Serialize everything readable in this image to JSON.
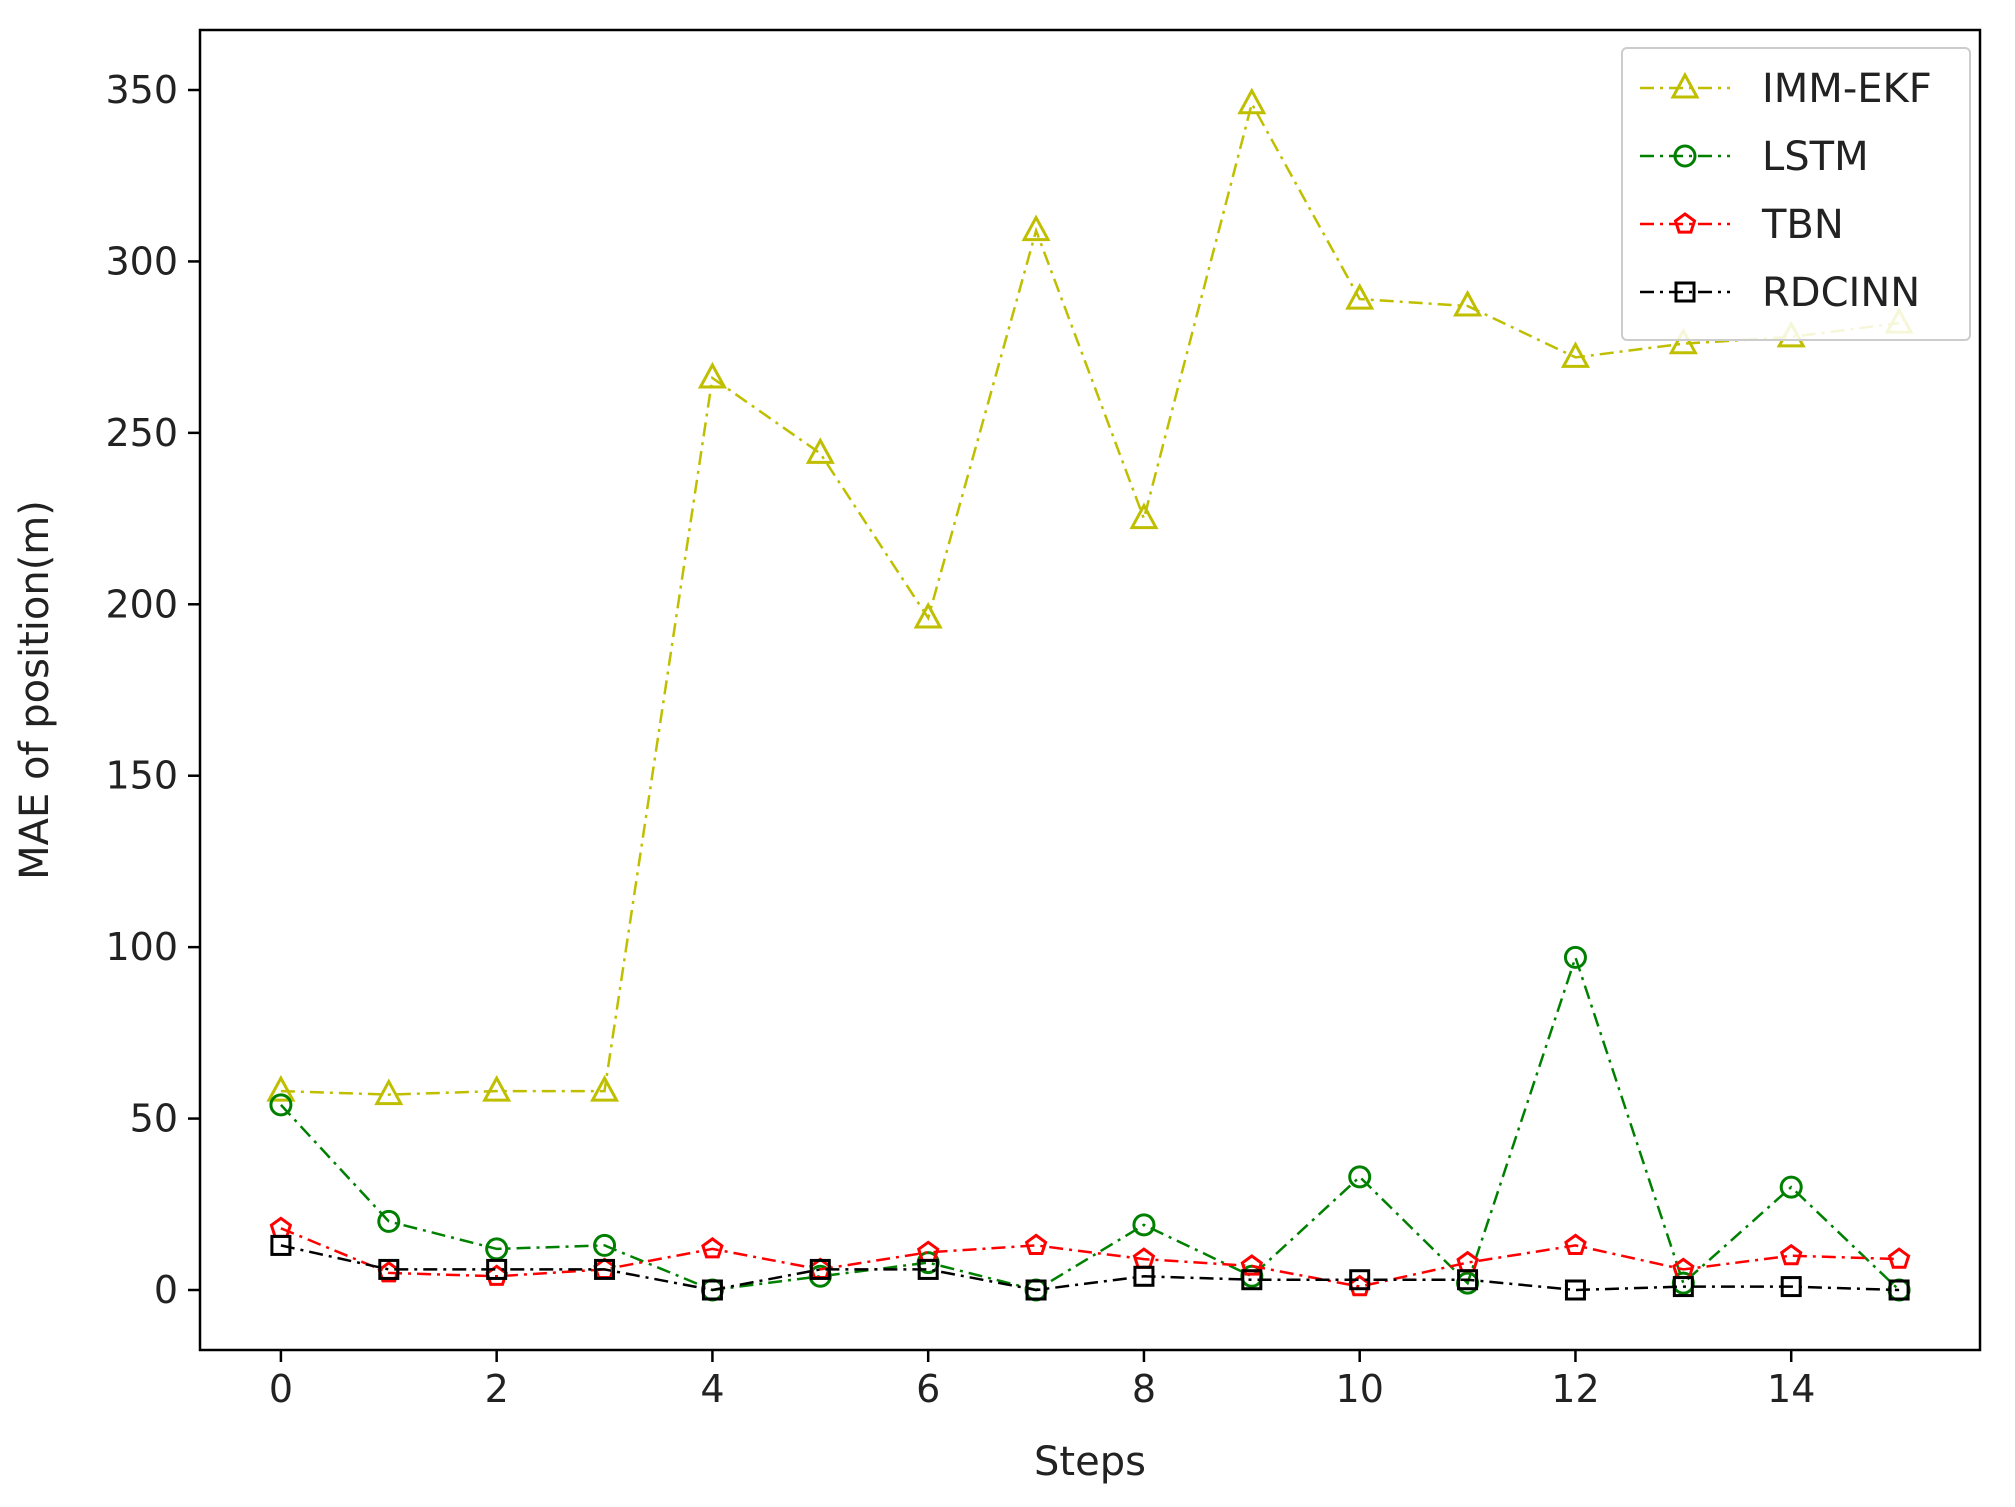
{
  "chart_data": {
    "type": "line",
    "title": "",
    "xlabel": "Steps",
    "ylabel": "MAE of position(m)",
    "xlim": [
      -0.75,
      15.75
    ],
    "ylim": [
      -17.5,
      367.5
    ],
    "xticks": [
      0,
      2,
      4,
      6,
      8,
      10,
      12,
      14
    ],
    "yticks": [
      0,
      50,
      100,
      150,
      200,
      250,
      300,
      350
    ],
    "grid": false,
    "legend_position": "top-right",
    "x": [
      0,
      1,
      2,
      3,
      4,
      5,
      6,
      7,
      8,
      9,
      10,
      11,
      12,
      13,
      14,
      15
    ],
    "series": [
      {
        "name": "IMM-EKF",
        "color": "#bfbf00",
        "marker": "triangle",
        "values": [
          58,
          57,
          58,
          58,
          266,
          244,
          196,
          309,
          225,
          346,
          289,
          287,
          272,
          276,
          278,
          282
        ]
      },
      {
        "name": "LSTM",
        "color": "#008000",
        "marker": "circle",
        "values": [
          54,
          20,
          12,
          13,
          0,
          4,
          8,
          0,
          19,
          4,
          33,
          2,
          97,
          2,
          30,
          0
        ]
      },
      {
        "name": "TBN",
        "color": "#ff0000",
        "marker": "pentagon",
        "values": [
          18,
          5,
          4,
          6,
          12,
          6,
          11,
          13,
          9,
          7,
          1,
          8,
          13,
          6,
          10,
          9
        ]
      },
      {
        "name": "RDCINN",
        "color": "#000000",
        "marker": "square",
        "values": [
          13,
          6,
          6,
          6,
          0,
          6,
          6,
          0,
          4,
          3,
          3,
          3,
          0,
          1,
          1,
          0
        ]
      }
    ]
  }
}
